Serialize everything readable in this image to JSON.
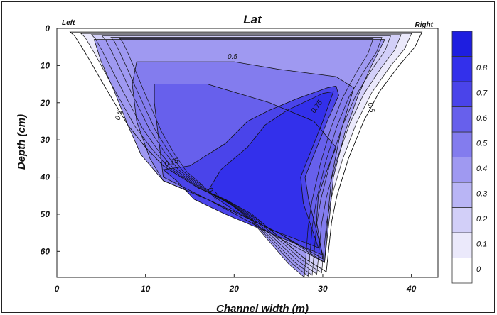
{
  "chart_data": {
    "type": "heatmap",
    "title": "Lat",
    "xlabel": "Channel width (m)",
    "ylabel": "Depth (cm)",
    "xlim": [
      0,
      43
    ],
    "ylim": [
      0,
      67
    ],
    "y_inverted": true,
    "x_ticks": [
      "0",
      "10",
      "20",
      "30",
      "40"
    ],
    "y_ticks": [
      "0",
      "10",
      "20",
      "30",
      "40",
      "50",
      "60"
    ],
    "side_labels": {
      "left": "Left",
      "right": "Right"
    },
    "contour_labels": [
      "0.5",
      "0.5",
      "0.5",
      "0.75",
      "0.75",
      "0.75"
    ],
    "colorbar": {
      "ticks": [
        "0",
        "0.1",
        "0.2",
        "0.3",
        "0.4",
        "0.5",
        "0.6",
        "0.7",
        "0.8"
      ],
      "levels": [
        0,
        0.1,
        0.2,
        0.3,
        0.4,
        0.5,
        0.6,
        0.7,
        0.8,
        0.9
      ],
      "colors": [
        "#ffffff",
        "#ebe9fb",
        "#d2cff8",
        "#b9b5f5",
        "#9f99f1",
        "#837cee",
        "#6760ec",
        "#4a44ea",
        "#3330eb",
        "#1e1ee0"
      ]
    },
    "section_outline": {
      "x": [
        1.5,
        41.2,
        40.4,
        38.6,
        36.4,
        34.6,
        32.9,
        31.6,
        31.0,
        30.4,
        28.0,
        25.0,
        22.0,
        19.0,
        16.0,
        14.0,
        12.0,
        10.0,
        8.0,
        6.5,
        5.0,
        3.8,
        2.8,
        2.0
      ],
      "y": [
        1.0,
        1.0,
        5.0,
        10.0,
        17.0,
        25.0,
        35.0,
        45.0,
        52.0,
        65.5,
        62.0,
        56.0,
        50.0,
        46.0,
        43.0,
        40.0,
        37.0,
        32.0,
        26.0,
        20.0,
        14.0,
        9.0,
        5.0,
        2.0
      ]
    },
    "zones": [
      {
        "level": 0.45,
        "x": [
          4.2,
          37.0,
          35.5,
          34.0,
          32.5,
          31.2,
          30.8,
          30.2,
          24.0,
          17.0,
          12.0,
          9.5,
          8.0,
          6.5,
          5.0
        ],
        "y": [
          3.0,
          3.0,
          10.0,
          18.0,
          28.0,
          40.0,
          50.0,
          63.0,
          55.0,
          46.0,
          41.0,
          34.0,
          26.0,
          17.0,
          9.0
        ]
      },
      {
        "level": 0.55,
        "x": [
          9.0,
          20.0,
          25.0,
          31.5,
          33.5,
          32.0,
          31.0,
          30.6,
          30.2,
          25.0,
          17.0,
          12.0,
          10.5,
          9.0,
          8.5
        ],
        "y": [
          9.0,
          9.0,
          11.0,
          13.0,
          16.0,
          28.0,
          40.0,
          50.0,
          63.0,
          55.0,
          46.0,
          41.0,
          35.0,
          25.0,
          15.0
        ]
      },
      {
        "level": 0.65,
        "x": [
          11.0,
          17.0,
          24.0,
          29.0,
          31.5,
          30.5,
          29.5,
          29.3,
          30.0,
          25.0,
          17.0,
          12.0,
          11.5,
          11.0
        ],
        "y": [
          15.0,
          15.0,
          20.0,
          25.0,
          32.0,
          38.0,
          45.0,
          52.0,
          62.0,
          55.0,
          46.0,
          40.0,
          30.0,
          20.0
        ]
      },
      {
        "level": 0.75,
        "x": [
          30.5,
          31.5,
          31.8,
          30.5,
          29.0,
          28.0,
          28.4,
          30.0,
          25.0,
          19.0,
          15.5,
          13.5,
          12.0,
          15.0,
          19.0,
          21.5,
          24.0,
          27.0
        ],
        "y": [
          16.0,
          15.5,
          18.0,
          25.0,
          34.0,
          40.0,
          46.0,
          61.0,
          56.0,
          50.0,
          46.0,
          41.0,
          38.0,
          37.0,
          31.0,
          25.0,
          22.0,
          19.0
        ]
      },
      {
        "level": 0.82,
        "x": [
          30.0,
          31.2,
          30.0,
          28.5,
          27.5,
          27.8,
          29.5,
          24.0,
          20.0,
          17.0,
          18.5,
          21.5,
          23.5,
          26.0
        ],
        "y": [
          17.5,
          17.0,
          25.0,
          34.0,
          40.0,
          47.0,
          59.0,
          54.0,
          49.0,
          44.0,
          38.0,
          32.0,
          26.0,
          22.0
        ]
      }
    ]
  }
}
